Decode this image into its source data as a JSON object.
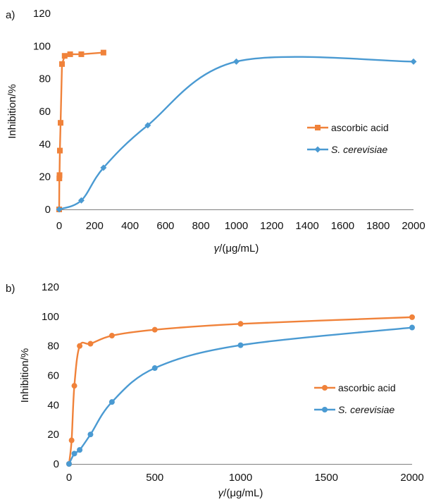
{
  "colors": {
    "ascorbic": "#f0823a",
    "cerevisiae": "#4a9ad2",
    "axis": "#7f7f7f"
  },
  "chart_data": [
    {
      "panel_label": "a)",
      "type": "line",
      "xlabel_prefix": "γ",
      "xlabel_suffix": "/(μg/mL)",
      "ylabel": "Inhibition/%",
      "xlim": [
        0,
        2000
      ],
      "ylim": [
        0,
        120
      ],
      "x_ticks": [
        0,
        200,
        400,
        600,
        800,
        1000,
        1200,
        1400,
        1600,
        1800,
        2000
      ],
      "y_ticks": [
        0,
        20,
        40,
        60,
        80,
        100,
        120
      ],
      "grid": false,
      "legend_position": "right",
      "series": [
        {
          "name": "ascorbic acid",
          "italic": false,
          "color_key": "ascorbic",
          "marker": "square",
          "x": [
            0,
            1,
            2,
            4,
            8,
            16,
            31,
            62,
            125,
            250
          ],
          "y": [
            0,
            19,
            21,
            36,
            53,
            89,
            94,
            95,
            95,
            96
          ]
        },
        {
          "name": "S. cerevisiae",
          "italic": true,
          "color_key": "cerevisiae",
          "marker": "diamond",
          "x": [
            0,
            125,
            250,
            500,
            1000,
            2000
          ],
          "y": [
            0,
            5.5,
            25.5,
            51.5,
            90.5,
            90.5
          ]
        }
      ]
    },
    {
      "panel_label": "b)",
      "type": "line",
      "xlabel_prefix": "γ",
      "xlabel_suffix": "/(μg/mL)",
      "ylabel": "Inhibition/%",
      "xlim": [
        0,
        2000
      ],
      "ylim": [
        0,
        120
      ],
      "x_ticks": [
        0,
        500,
        1000,
        1500,
        2000
      ],
      "y_ticks": [
        0,
        20,
        40,
        60,
        80,
        100,
        120
      ],
      "grid": false,
      "legend_position": "right",
      "series": [
        {
          "name": "ascorbic acid",
          "italic": false,
          "color_key": "ascorbic",
          "marker": "circle",
          "x": [
            0,
            15,
            31,
            62,
            125,
            250,
            500,
            1000,
            2000
          ],
          "y": [
            0,
            16,
            53,
            80,
            81.5,
            87,
            91,
            95,
            99.5
          ]
        },
        {
          "name": "S. cerevisiae",
          "italic": true,
          "color_key": "cerevisiae",
          "marker": "circle",
          "x": [
            0,
            31,
            62,
            125,
            250,
            500,
            1000,
            2000
          ],
          "y": [
            0,
            7,
            9.5,
            20,
            42,
            65,
            80.5,
            92.5
          ]
        }
      ]
    }
  ]
}
